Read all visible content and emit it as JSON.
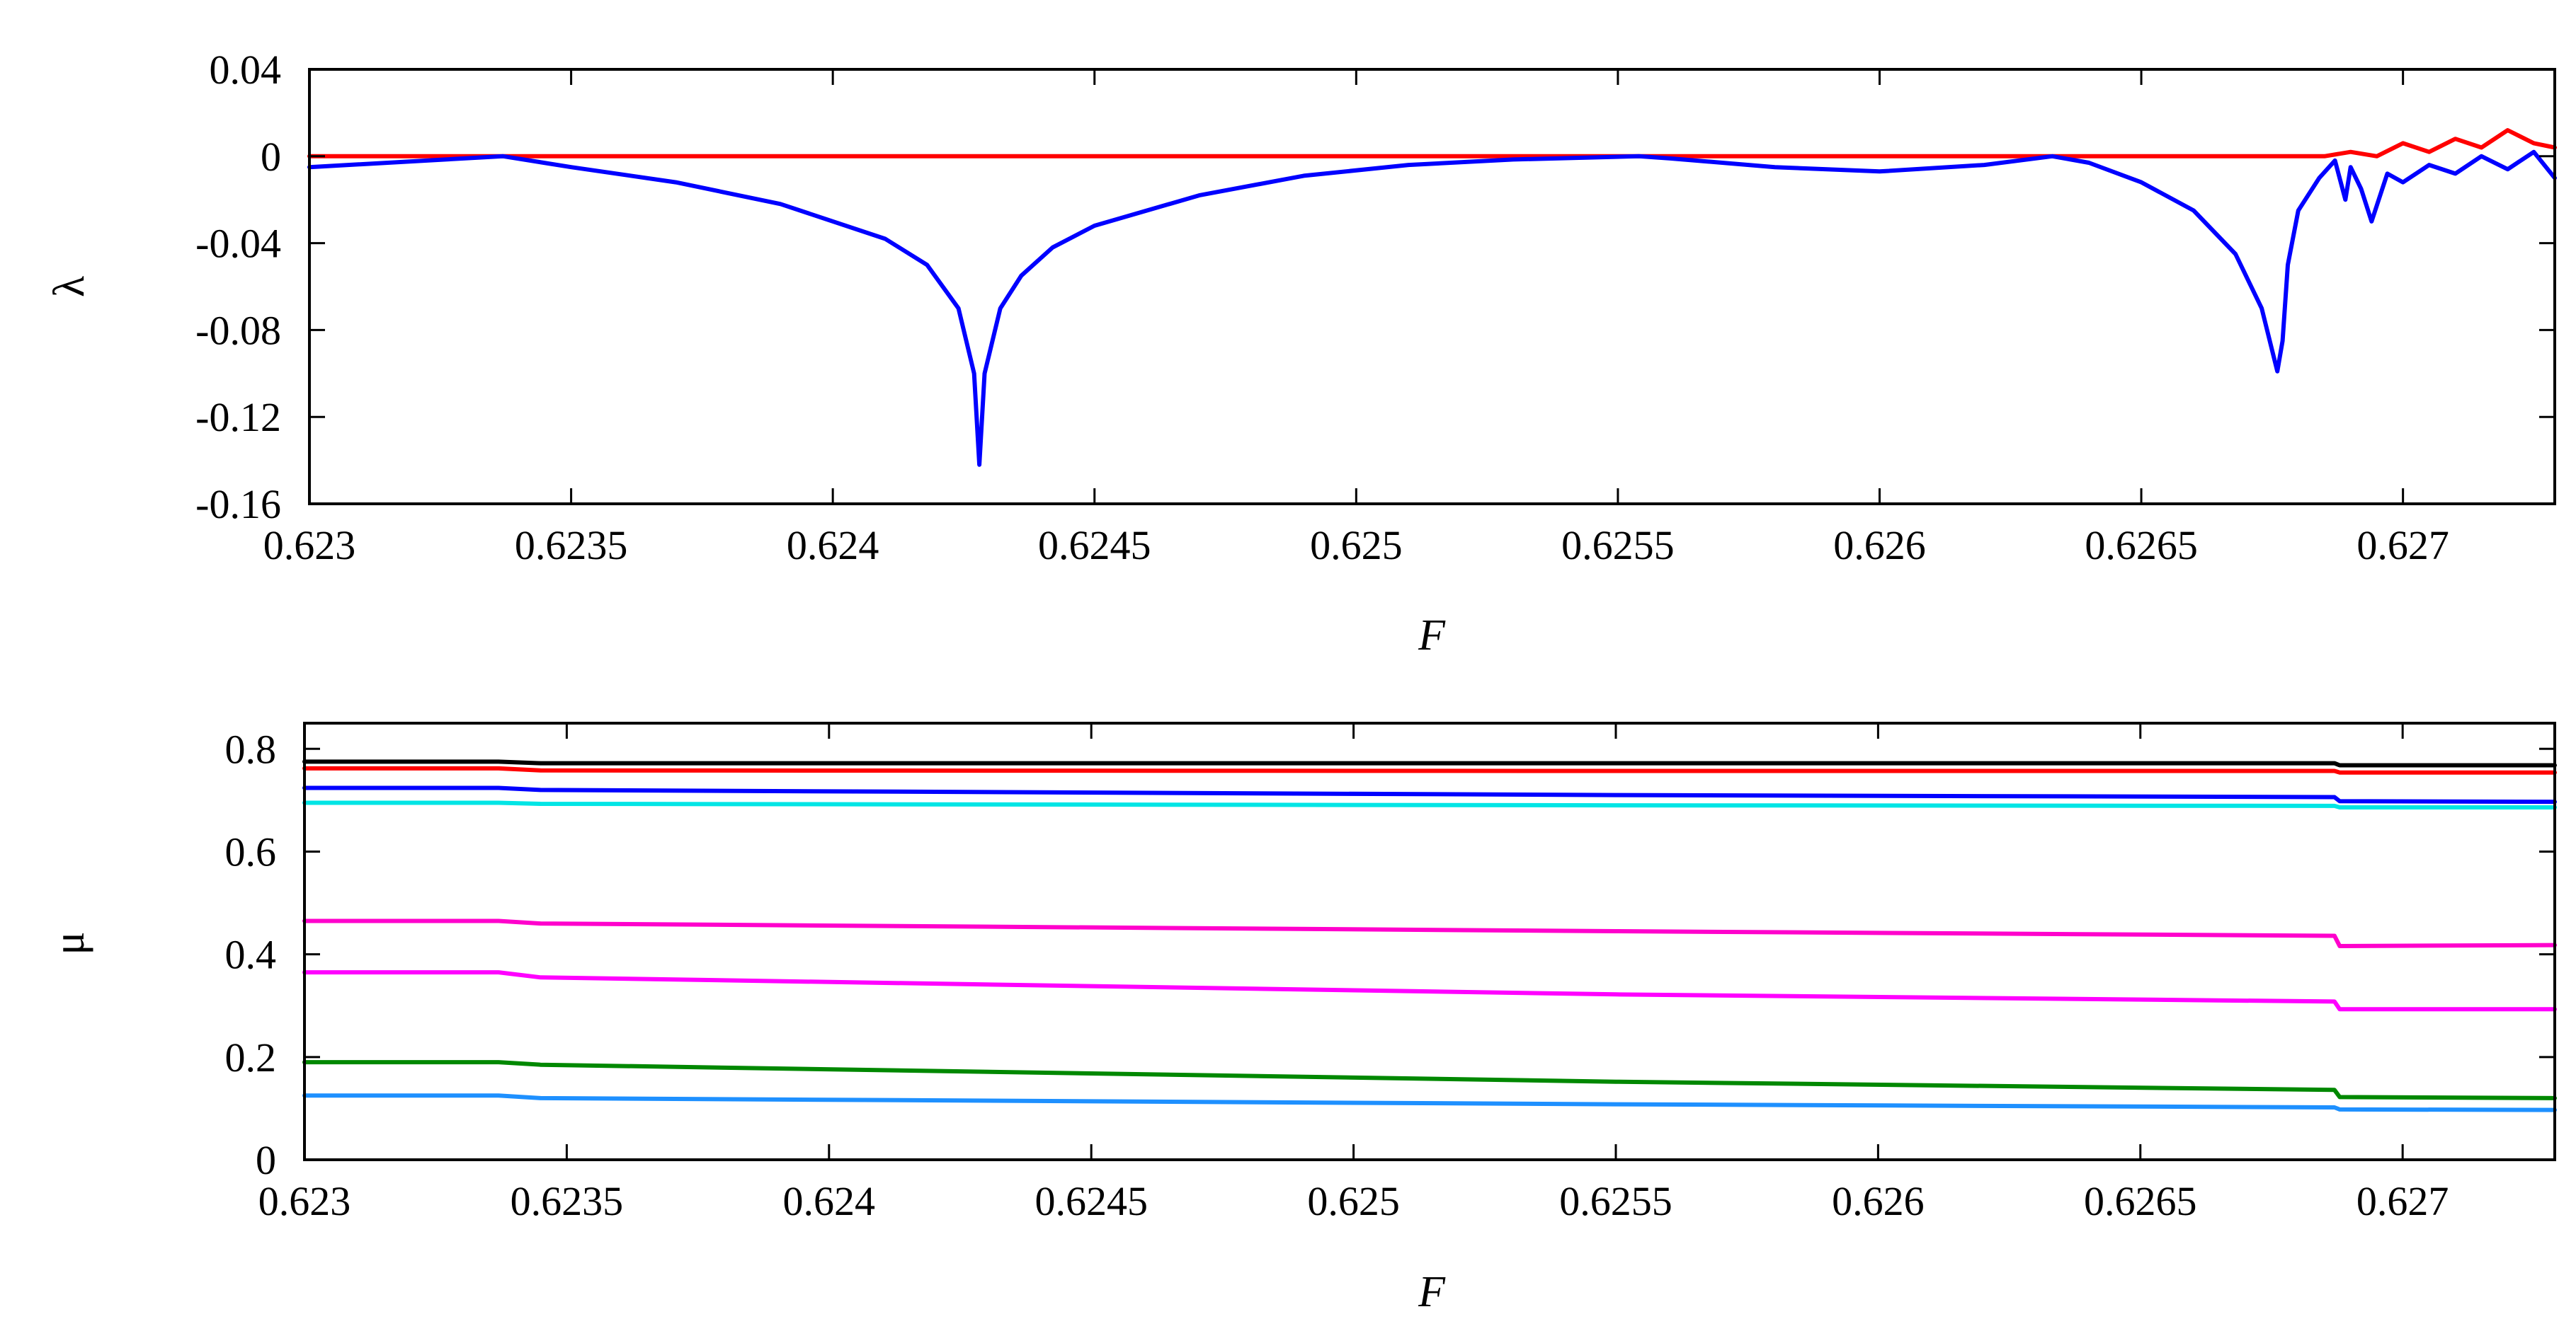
{
  "chart_data": [
    {
      "type": "line",
      "xlabel": "F",
      "ylabel": "λ",
      "xlim": [
        0.623,
        0.62729
      ],
      "ylim": [
        -0.16,
        0.04
      ],
      "xticks": [
        0.623,
        0.6235,
        0.624,
        0.6245,
        0.625,
        0.6255,
        0.626,
        0.6265,
        0.627
      ],
      "xtick_labels": [
        "0.623",
        "0.6235",
        "0.624",
        "0.6245",
        "0.625",
        "0.6255",
        "0.626",
        "0.6265",
        "0.627"
      ],
      "yticks": [
        0.04,
        0,
        -0.04,
        -0.08,
        -0.12,
        -0.16
      ],
      "ytick_labels": [
        "0.04",
        "0",
        "-0.04",
        "-0.08",
        "-0.12",
        "-0.16"
      ],
      "grid": false,
      "series": [
        {
          "color": "#ff0000",
          "x": [
            0.623,
            0.62685,
            0.6269,
            0.62695,
            0.627,
            0.62705,
            0.6271,
            0.62715,
            0.6272,
            0.62725,
            0.62729
          ],
          "y": [
            0,
            0,
            0.002,
            0.0,
            0.006,
            0.002,
            0.008,
            0.004,
            0.012,
            0.006,
            0.004
          ]
        },
        {
          "color": "#0000ff",
          "x": [
            0.623,
            0.62337,
            0.6235,
            0.6237,
            0.6239,
            0.6241,
            0.62418,
            0.62424,
            0.62427,
            0.62428,
            0.62429,
            0.62432,
            0.62436,
            0.62442,
            0.6245,
            0.6247,
            0.6249,
            0.6251,
            0.6253,
            0.62554,
            0.6256,
            0.6258,
            0.626,
            0.6262,
            0.62633,
            0.6264,
            0.6265,
            0.6266,
            0.62668,
            0.62673,
            0.62676,
            0.62677,
            0.62678,
            0.6268,
            0.62684,
            0.62687,
            0.62689,
            0.6269,
            0.62692,
            0.62694,
            0.62697,
            0.627,
            0.62705,
            0.6271,
            0.62715,
            0.6272,
            0.62725,
            0.62729
          ],
          "y": [
            -0.005,
            0,
            -0.005,
            -0.012,
            -0.022,
            -0.038,
            -0.05,
            -0.07,
            -0.1,
            -0.142,
            -0.1,
            -0.07,
            -0.055,
            -0.042,
            -0.032,
            -0.018,
            -0.009,
            -0.004,
            -0.0015,
            0,
            -0.001,
            -0.005,
            -0.007,
            -0.004,
            0,
            -0.003,
            -0.012,
            -0.025,
            -0.045,
            -0.07,
            -0.099,
            -0.085,
            -0.05,
            -0.025,
            -0.01,
            -0.002,
            -0.02,
            -0.005,
            -0.015,
            -0.03,
            -0.008,
            -0.012,
            -0.004,
            -0.008,
            0.0,
            -0.006,
            0.002,
            -0.01
          ]
        }
      ]
    },
    {
      "type": "line",
      "xlabel": "F",
      "ylabel": "μ",
      "xlim": [
        0.623,
        0.62729
      ],
      "ylim": [
        0,
        0.85
      ],
      "xticks": [
        0.623,
        0.6235,
        0.624,
        0.6245,
        0.625,
        0.6255,
        0.626,
        0.6265,
        0.627
      ],
      "xtick_labels": [
        "0.623",
        "0.6235",
        "0.624",
        "0.6245",
        "0.625",
        "0.6255",
        "0.626",
        "0.6265",
        "0.627"
      ],
      "yticks": [
        0,
        0.2,
        0.4,
        0.6,
        0.8
      ],
      "ytick_labels": [
        "0",
        "0.2",
        "0.4",
        "0.6",
        "0.8"
      ],
      "grid": false,
      "series": [
        {
          "color": "#000000",
          "x": [
            0.623,
            0.62337,
            0.62345,
            0.6255,
            0.62687,
            0.62688,
            0.62729
          ],
          "y": [
            0.775,
            0.775,
            0.772,
            0.772,
            0.772,
            0.768,
            0.768
          ]
        },
        {
          "color": "#ff0000",
          "x": [
            0.623,
            0.62337,
            0.62345,
            0.6255,
            0.62687,
            0.62688,
            0.62729
          ],
          "y": [
            0.762,
            0.762,
            0.758,
            0.757,
            0.757,
            0.754,
            0.754
          ]
        },
        {
          "color": "#0000ff",
          "x": [
            0.623,
            0.62337,
            0.62345,
            0.6255,
            0.62687,
            0.62688,
            0.62729
          ],
          "y": [
            0.724,
            0.724,
            0.72,
            0.71,
            0.706,
            0.698,
            0.697
          ]
        },
        {
          "color": "#00e5e5",
          "x": [
            0.623,
            0.62337,
            0.62345,
            0.6255,
            0.62687,
            0.62688,
            0.62729
          ],
          "y": [
            0.695,
            0.695,
            0.693,
            0.69,
            0.689,
            0.686,
            0.686
          ]
        },
        {
          "color": "#ff00cc",
          "x": [
            0.623,
            0.62337,
            0.62345,
            0.6255,
            0.62687,
            0.62688,
            0.62729
          ],
          "y": [
            0.465,
            0.465,
            0.46,
            0.445,
            0.436,
            0.416,
            0.418
          ]
        },
        {
          "color": "#ff00ff",
          "x": [
            0.623,
            0.62337,
            0.62345,
            0.6255,
            0.62687,
            0.62688,
            0.62729
          ],
          "y": [
            0.365,
            0.365,
            0.355,
            0.322,
            0.308,
            0.293,
            0.293
          ]
        },
        {
          "color": "#008800",
          "x": [
            0.623,
            0.62337,
            0.62345,
            0.6255,
            0.62687,
            0.62688,
            0.62729
          ],
          "y": [
            0.19,
            0.19,
            0.185,
            0.152,
            0.136,
            0.122,
            0.12
          ]
        },
        {
          "color": "#1e90ff",
          "x": [
            0.623,
            0.62337,
            0.62345,
            0.6255,
            0.62687,
            0.62688,
            0.62729
          ],
          "y": [
            0.125,
            0.125,
            0.12,
            0.108,
            0.102,
            0.098,
            0.097
          ]
        }
      ]
    }
  ]
}
